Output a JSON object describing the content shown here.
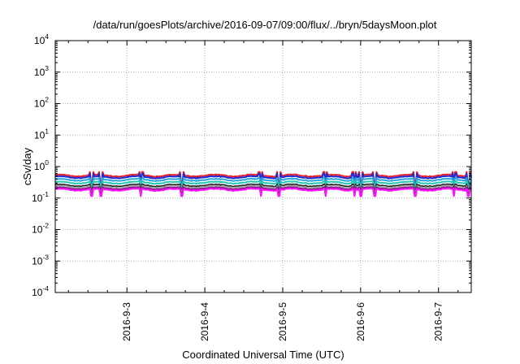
{
  "chart_data": {
    "type": "line",
    "title": "/data/run/goesPlots/archive/2016-09-07/09:00/flux/../bryn/5daysMoon.plot",
    "xlabel": "Coordinated Universal Time (UTC)",
    "ylabel": "cSv/day",
    "yscale": "log",
    "ylim": [
      0.0001,
      10000
    ],
    "xlim": [
      2.08,
      7.42
    ],
    "grid": true,
    "y_ticks": [
      {
        "base": "10",
        "exp": "-4"
      },
      {
        "base": "10",
        "exp": "-3"
      },
      {
        "base": "10",
        "exp": "-2"
      },
      {
        "base": "10",
        "exp": "-1"
      },
      {
        "base": "10",
        "exp": "0"
      },
      {
        "base": "10",
        "exp": "1"
      },
      {
        "base": "10",
        "exp": "2"
      },
      {
        "base": "10",
        "exp": "3"
      },
      {
        "base": "10",
        "exp": "4"
      }
    ],
    "x_ticks": [
      "2016-9-3",
      "2016-9-4",
      "2016-9-5",
      "2016-9-6",
      "2016-9-7"
    ],
    "x_tick_positions": [
      3,
      4,
      5,
      6,
      7
    ],
    "series": [
      {
        "color": "#e8202a",
        "level": 0.52,
        "dip_factor": 0.55,
        "spike_factor": 1.3,
        "width": 2
      },
      {
        "color": "#1f2bd6",
        "level": 0.46,
        "dip_factor": 0.55,
        "spike_factor": 1.3,
        "width": 2
      },
      {
        "color": "#2aa7d8",
        "level": 0.38,
        "dip_factor": 0.65,
        "spike_factor": 1.15,
        "width": 2
      },
      {
        "color": "#26c8b4",
        "level": 0.31,
        "dip_factor": 0.7,
        "spike_factor": 1.1,
        "width": 2
      },
      {
        "color": "#222222",
        "level": 0.255,
        "dip_factor": 0.75,
        "spike_factor": 1.08,
        "width": 1.6
      },
      {
        "color": "#9a9a9a",
        "level": 0.23,
        "dip_factor": 0.75,
        "spike_factor": 1.08,
        "width": 1.2
      },
      {
        "color": "#8b1a8b",
        "level": 0.205,
        "dip_factor": 0.7,
        "spike_factor": 1.08,
        "width": 2
      },
      {
        "color": "#ff10ff",
        "level": 0.185,
        "dip_factor": 0.62,
        "spike_factor": 1.06,
        "width": 2
      }
    ],
    "dips_at": [
      2.55,
      2.67,
      3.18,
      3.7,
      4.72,
      4.95,
      5.55,
      5.92,
      6.0,
      6.18,
      6.7,
      7.2,
      7.38
    ]
  }
}
